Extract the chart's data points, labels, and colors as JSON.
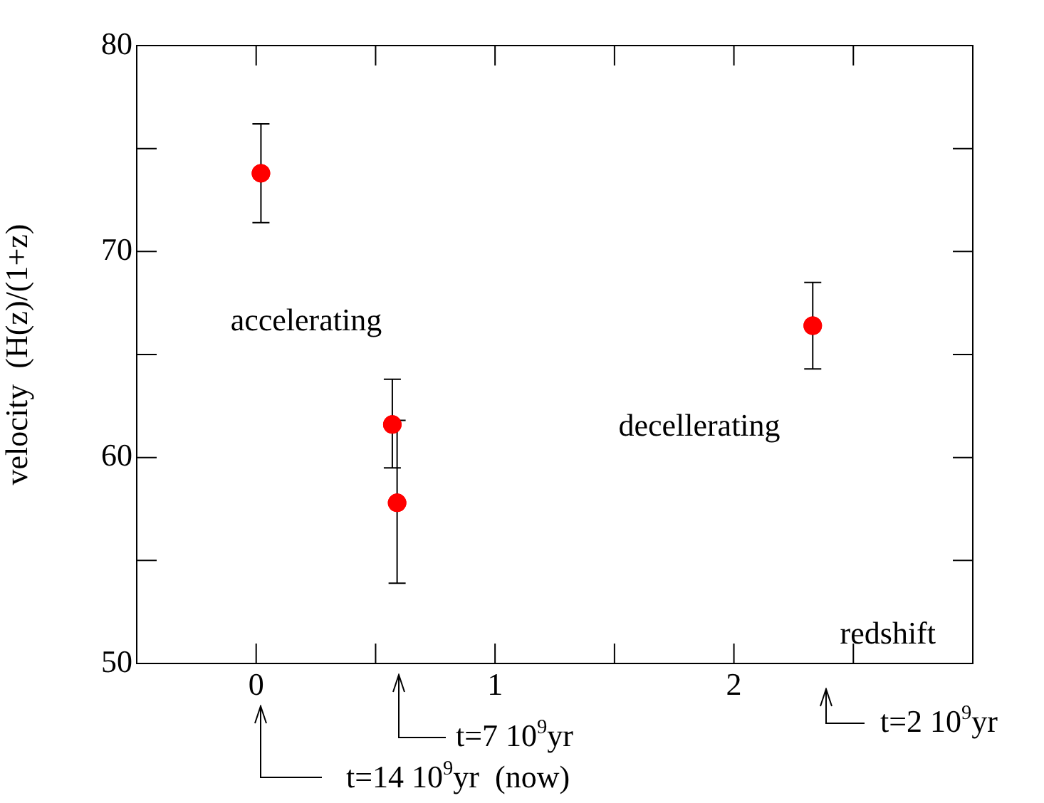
{
  "chart_data": {
    "type": "scatter",
    "ylabel": "velocity  (H(z)/(1+z)",
    "xlabel": "redshift",
    "x": [
      0.02,
      0.57,
      0.59,
      2.33
    ],
    "values": [
      73.8,
      61.6,
      57.8,
      66.4
    ],
    "errors": [
      [
        71.4,
        76.2
      ],
      [
        59.5,
        63.8
      ],
      [
        53.9,
        61.8
      ],
      [
        64.3,
        68.5
      ]
    ],
    "color": "#ff0000",
    "marker": "circle",
    "grid": false,
    "legend": false,
    "xlim": [
      -0.5,
      3
    ],
    "xticks": [
      0,
      {
        "value": 0.5,
        "label": null
      },
      1,
      {
        "value": 1.5,
        "label": null
      },
      2,
      {
        "value": 2.5,
        "label": null
      }
    ],
    "ylim": [
      50,
      80
    ],
    "yticks": [
      50,
      {
        "value": 55,
        "label": null
      },
      60,
      {
        "value": 65,
        "label": null
      },
      70,
      {
        "value": 75,
        "label": null
      },
      80
    ],
    "annotations": [
      "accelerating",
      "decellerating",
      "t=14 10$^{9}$yr  (now)",
      "t=7 10$^{9}$yr",
      "t=2 10$^{9}$yr"
    ]
  }
}
